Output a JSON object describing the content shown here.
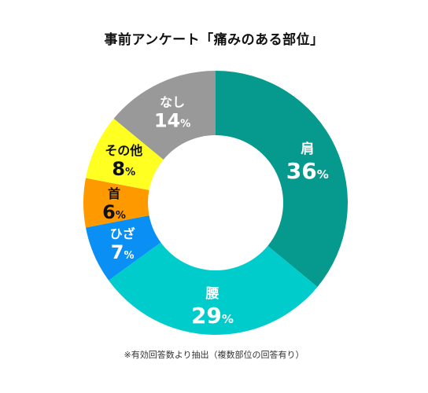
{
  "chart_data": {
    "type": "pie",
    "title": "事前アンケート「痛みのある部位」",
    "note": "※有効回答数より抽出（複数部位の回答有り）",
    "percent_sign": "%",
    "slices": [
      {
        "label": "肩",
        "value": 36,
        "color": "#069a8e",
        "text_color": "#ffffff"
      },
      {
        "label": "腰",
        "value": 29,
        "color": "#00cccc",
        "text_color": "#ffffff"
      },
      {
        "label": "ひざ",
        "value": 7,
        "color": "#0a8ff5",
        "text_color": "#ffffff"
      },
      {
        "label": "首",
        "value": 6,
        "color": "#ff9900",
        "text_color": "#111111"
      },
      {
        "label": "その他",
        "value": 8,
        "color": "#ffff22",
        "text_color": "#111111"
      },
      {
        "label": "なし",
        "value": 14,
        "color": "#999999",
        "text_color": "#ffffff"
      }
    ]
  }
}
